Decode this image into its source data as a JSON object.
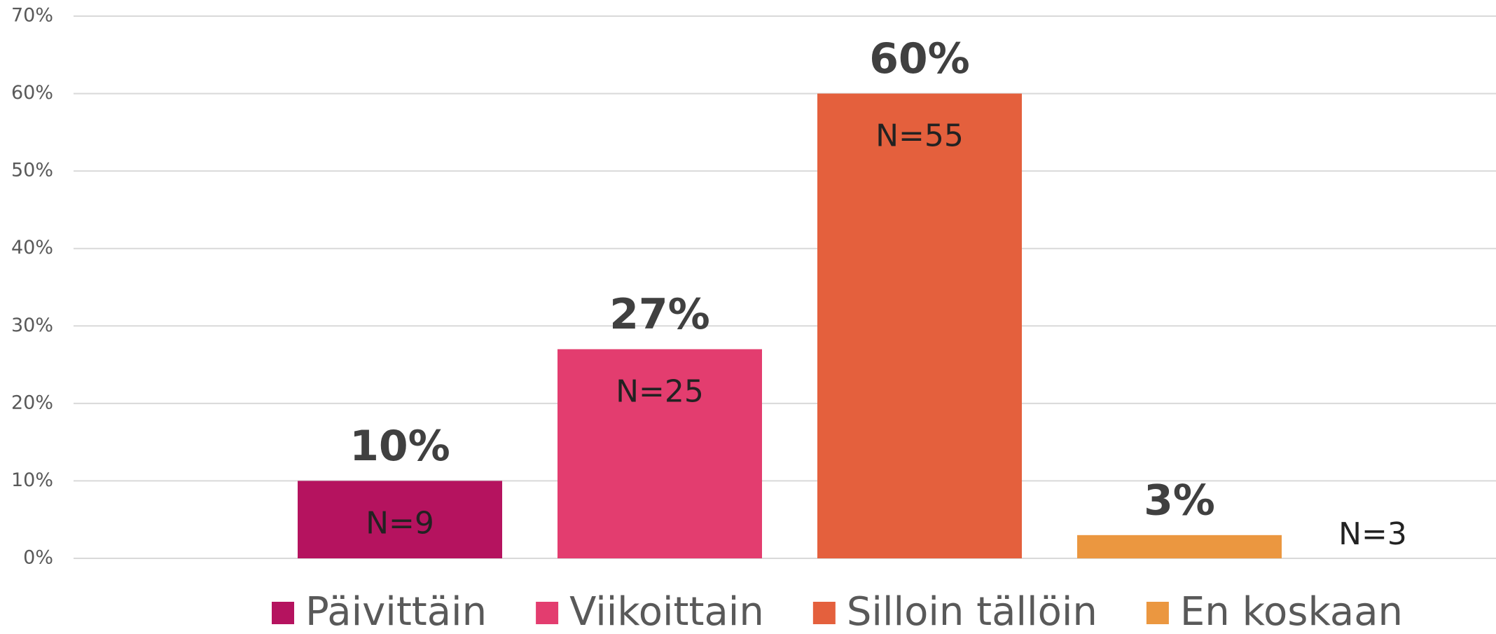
{
  "chart_data": {
    "type": "bar",
    "series": [
      {
        "name": "Päivittäin",
        "color": "#b5135f",
        "values": [
          10
        ],
        "value_labels": [
          "10%"
        ],
        "n_label": "N=9"
      },
      {
        "name": "Viikoittain",
        "color": "#e33d6f",
        "values": [
          27
        ],
        "value_labels": [
          "27%"
        ],
        "n_label": "N=25"
      },
      {
        "name": "Silloin tällöin",
        "color": "#e4603d",
        "values": [
          60
        ],
        "value_labels": [
          "60%"
        ],
        "n_label": "N=55"
      },
      {
        "name": "En koskaan",
        "color": "#eb9740",
        "values": [
          3
        ],
        "value_labels": [
          "3%"
        ],
        "n_label": "N=3"
      }
    ],
    "ylim": [
      0,
      70
    ],
    "yticks": [
      {
        "value": 0,
        "label": "0%"
      },
      {
        "value": 10,
        "label": "10%"
      },
      {
        "value": 20,
        "label": "20%"
      },
      {
        "value": 30,
        "label": "30%"
      },
      {
        "value": 40,
        "label": "40%"
      },
      {
        "value": 50,
        "label": "50%"
      },
      {
        "value": 60,
        "label": "60%"
      },
      {
        "value": 70,
        "label": "70%"
      }
    ],
    "grid": true,
    "legend": "bottom"
  }
}
